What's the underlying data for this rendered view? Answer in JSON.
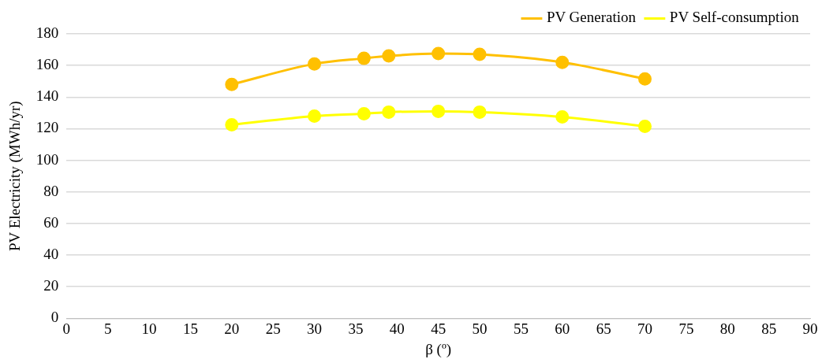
{
  "chart_data": {
    "type": "line",
    "xlabel": "β (º)",
    "ylabel": "PV Electricity (MWh/yr)",
    "x": [
      20,
      30,
      36,
      39,
      45,
      50,
      60,
      70
    ],
    "series": [
      {
        "name": "PV Generation",
        "color": "#ffc000",
        "values": [
          148,
          161,
          164.5,
          166,
          167.5,
          167,
          162,
          151.5
        ]
      },
      {
        "name": "PV Self-consumption",
        "color": "#ffff00",
        "values": [
          122.5,
          128,
          129.5,
          130.5,
          131,
          130.5,
          127.5,
          121.5
        ]
      }
    ],
    "xlim": [
      0,
      90
    ],
    "xticks": [
      0,
      5,
      10,
      15,
      20,
      25,
      30,
      35,
      40,
      45,
      50,
      55,
      60,
      65,
      70,
      75,
      80,
      85,
      90
    ],
    "ylim": [
      0,
      180
    ],
    "yticks": [
      0,
      20,
      40,
      60,
      80,
      100,
      120,
      140,
      160,
      180
    ],
    "grid": "y",
    "legend": "top right",
    "marker": "circle",
    "line_style": "solid"
  }
}
